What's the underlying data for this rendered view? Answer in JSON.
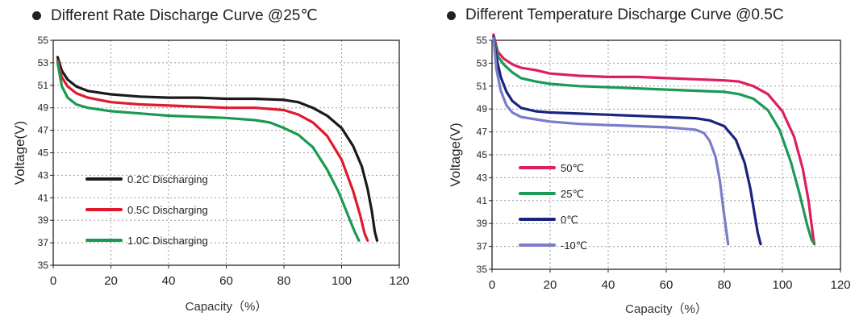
{
  "charts": [
    {
      "title": "Different Rate Discharge Curve @25℃",
      "chart_data": {
        "type": "line",
        "title": "Different Rate Discharge Curve @25℃",
        "xlabel": "Capacity（%）",
        "ylabel": "Voltage(V)",
        "xlim": [
          0,
          120
        ],
        "ylim": [
          35,
          55
        ],
        "xticks": [
          0,
          20,
          40,
          60,
          80,
          100,
          120
        ],
        "yticks": [
          35,
          37,
          39,
          41,
          43,
          45,
          47,
          49,
          51,
          53,
          55
        ],
        "grid": "dotted",
        "legend_position": "bottom-left",
        "series": [
          {
            "name": "0.2C Discharging",
            "color": "#1a1a1a",
            "x": [
              1.5,
              3,
              5,
              8,
              12,
              20,
              30,
              40,
              50,
              60,
              70,
              80,
              85,
              90,
              95,
              100,
              104,
              107,
              109,
              110.5,
              111.5,
              112.3
            ],
            "y": [
              53.5,
              52.3,
              51.5,
              50.9,
              50.5,
              50.2,
              50.0,
              49.9,
              49.9,
              49.8,
              49.8,
              49.7,
              49.5,
              49.0,
              48.3,
              47.2,
              45.6,
              43.8,
              41.8,
              39.8,
              38.0,
              37.2
            ]
          },
          {
            "name": "0.5C Discharging",
            "color": "#e0192b",
            "x": [
              1.5,
              3,
              5,
              8,
              12,
              20,
              30,
              40,
              50,
              60,
              70,
              80,
              85,
              90,
              95,
              100,
              104,
              106.5,
              108,
              109
            ],
            "y": [
              53.2,
              51.7,
              50.9,
              50.3,
              49.9,
              49.5,
              49.3,
              49.2,
              49.1,
              49.0,
              49.0,
              48.8,
              48.4,
              47.7,
              46.5,
              44.4,
              41.6,
              39.4,
              37.8,
              37.2
            ]
          },
          {
            "name": "1.0C Discharging",
            "color": "#1a9a50",
            "x": [
              1.5,
              3,
              5,
              8,
              12,
              20,
              30,
              40,
              50,
              60,
              70,
              75,
              80,
              85,
              90,
              95,
              99,
              102,
              104.5,
              106
            ],
            "y": [
              53.0,
              50.9,
              49.9,
              49.3,
              49.0,
              48.7,
              48.5,
              48.3,
              48.2,
              48.1,
              47.9,
              47.7,
              47.2,
              46.6,
              45.5,
              43.5,
              41.5,
              39.6,
              38.0,
              37.2
            ]
          }
        ]
      }
    },
    {
      "title": "Different Temperature Discharge Curve @0.5C",
      "chart_data": {
        "type": "line",
        "title": "Different Temperature Discharge Curve @0.5C",
        "xlabel": "Capacity（%）",
        "ylabel": "Voltage(V)",
        "xlim": [
          0,
          120
        ],
        "ylim": [
          35,
          55
        ],
        "xticks": [
          0,
          20,
          40,
          60,
          80,
          100,
          120
        ],
        "yticks": [
          35,
          37,
          39,
          41,
          43,
          45,
          47,
          49,
          51,
          53,
          55
        ],
        "grid": "dotted",
        "legend_position": "bottom-left",
        "series": [
          {
            "name": "50℃",
            "color": "#dd1f5c",
            "x": [
              0.5,
              2,
              4,
              7,
              10,
              15,
              20,
              30,
              40,
              50,
              60,
              70,
              80,
              85,
              90,
              95,
              100,
              104,
              107,
              109,
              110,
              110.6,
              111
            ],
            "y": [
              55.5,
              54.0,
              53.4,
              52.9,
              52.6,
              52.4,
              52.1,
              51.9,
              51.8,
              51.8,
              51.7,
              51.6,
              51.5,
              51.4,
              51.0,
              50.3,
              48.8,
              46.6,
              43.8,
              41.0,
              39.0,
              37.8,
              37.2
            ]
          },
          {
            "name": "25℃",
            "color": "#1c9a55",
            "x": [
              0.5,
              2,
              4,
              7,
              10,
              15,
              20,
              30,
              40,
              50,
              60,
              70,
              80,
              85,
              90,
              95,
              99,
              103,
              106,
              108.5,
              110,
              111
            ],
            "y": [
              55.3,
              53.6,
              52.9,
              52.2,
              51.7,
              51.4,
              51.2,
              51.0,
              50.9,
              50.8,
              50.7,
              50.6,
              50.5,
              50.3,
              49.9,
              48.9,
              47.2,
              44.3,
              41.5,
              38.9,
              37.6,
              37.2
            ]
          },
          {
            "name": "0℃",
            "color": "#1a237e",
            "x": [
              0.5,
              1.5,
              3,
              5,
              7,
              10,
              15,
              20,
              30,
              40,
              50,
              60,
              70,
              75,
              80,
              84,
              87,
              89,
              90.5,
              91.5,
              92.5
            ],
            "y": [
              55.3,
              53.5,
              51.8,
              50.5,
              49.7,
              49.1,
              48.8,
              48.7,
              48.6,
              48.5,
              48.4,
              48.3,
              48.2,
              48.0,
              47.5,
              46.3,
              44.3,
              42.0,
              39.7,
              38.2,
              37.2
            ]
          },
          {
            "name": "-10℃",
            "color": "#7b7cc8",
            "x": [
              0.5,
              1.5,
              3,
              5,
              7,
              10,
              15,
              20,
              30,
              40,
              50,
              60,
              65,
              70,
              73,
              75,
              77,
              78.5,
              79.5,
              80.5,
              81.3
            ],
            "y": [
              55.2,
              52.5,
              50.6,
              49.3,
              48.7,
              48.3,
              48.1,
              47.9,
              47.7,
              47.6,
              47.5,
              47.4,
              47.3,
              47.2,
              46.9,
              46.2,
              44.8,
              42.7,
              40.6,
              38.7,
              37.2
            ]
          }
        ]
      }
    }
  ]
}
